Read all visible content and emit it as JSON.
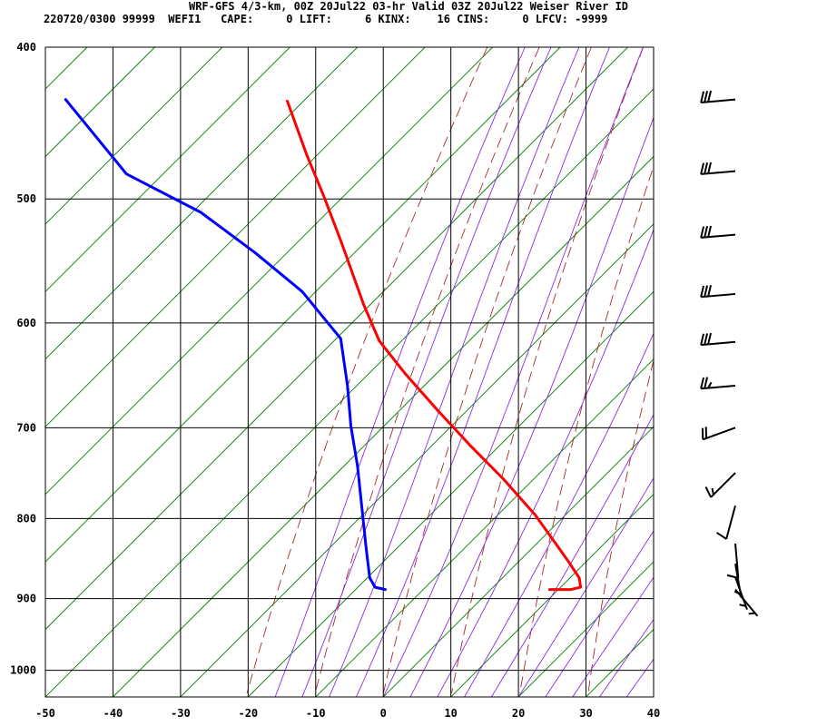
{
  "header": {
    "title": "WRF-GFS 4/3-km, 00Z 20Jul22 03-hr Valid 03Z 20Jul22 Weiser River ID",
    "stats": "220720/0300 99999  WEFI1   CAPE:     0 LIFT:     6 KINX:    16 CINS:     0 LFCV: -9999"
  },
  "colors": {
    "temperature": "#ff0000",
    "dewpoint": "#0000ff",
    "dry_adiabat": "#a52a2a",
    "moist_adiabat": "#8b2be2",
    "isotherm": "#008000",
    "grid": "#000000",
    "wind_barb": "#000000"
  },
  "chart_data": {
    "type": "line",
    "subtype": "skew-T log-p sounding",
    "x_ticks": [
      -50,
      -40,
      -30,
      -20,
      -10,
      0,
      10,
      20,
      30,
      40
    ],
    "y_ticks": [
      400,
      500,
      600,
      700,
      800,
      900,
      1000
    ],
    "xlim": [
      -50,
      40
    ],
    "ylim": [
      1040,
      400
    ],
    "y_scale": "log",
    "grid": true,
    "series": [
      {
        "key": "temperature",
        "points": [
          {
            "p": 888,
            "x": 24.6
          },
          {
            "p": 888,
            "x": 27.8
          },
          {
            "p": 885,
            "x": 29.2
          },
          {
            "p": 873,
            "x": 29.0
          },
          {
            "p": 851,
            "x": 27.3
          },
          {
            "p": 823,
            "x": 24.9
          },
          {
            "p": 796,
            "x": 22.5
          },
          {
            "p": 755,
            "x": 17.8
          },
          {
            "p": 718,
            "x": 12.8
          },
          {
            "p": 682,
            "x": 8.0
          },
          {
            "p": 647,
            "x": 3.3
          },
          {
            "p": 616,
            "x": -0.6
          },
          {
            "p": 584,
            "x": -2.9
          },
          {
            "p": 533,
            "x": -6.2
          },
          {
            "p": 498,
            "x": -8.8
          },
          {
            "p": 469,
            "x": -11.3
          },
          {
            "p": 433,
            "x": -14.2
          }
        ]
      },
      {
        "key": "dewpoint",
        "points": [
          {
            "p": 888,
            "x": 0.3
          },
          {
            "p": 885,
            "x": -1.2
          },
          {
            "p": 873,
            "x": -2.0
          },
          {
            "p": 838,
            "x": -2.5
          },
          {
            "p": 800,
            "x": -3.0
          },
          {
            "p": 741,
            "x": -3.8
          },
          {
            "p": 698,
            "x": -4.8
          },
          {
            "p": 658,
            "x": -5.3
          },
          {
            "p": 614,
            "x": -6.3
          },
          {
            "p": 573,
            "x": -12.0
          },
          {
            "p": 541,
            "x": -19.0
          },
          {
            "p": 510,
            "x": -27.0
          },
          {
            "p": 482,
            "x": -38.0
          },
          {
            "p": 432,
            "x": -47.0
          }
        ]
      }
    ],
    "wind_barbs": [
      {
        "p": 432,
        "dir": 265,
        "speed": 30
      },
      {
        "p": 480,
        "dir": 265,
        "speed": 30
      },
      {
        "p": 527,
        "dir": 265,
        "speed": 30
      },
      {
        "p": 575,
        "dir": 265,
        "speed": 30
      },
      {
        "p": 617,
        "dir": 265,
        "speed": 30
      },
      {
        "p": 658,
        "dir": 265,
        "speed": 25
      },
      {
        "p": 700,
        "dir": 250,
        "speed": 20
      },
      {
        "p": 748,
        "dir": 225,
        "speed": 15
      },
      {
        "p": 785,
        "dir": 195,
        "speed": 10
      },
      {
        "p": 830,
        "dir": 175,
        "speed": 10
      },
      {
        "p": 855,
        "dir": 170,
        "speed": 5
      },
      {
        "p": 872,
        "dir": 160,
        "speed": 5
      },
      {
        "p": 888,
        "dir": 140,
        "speed": 5
      }
    ]
  }
}
